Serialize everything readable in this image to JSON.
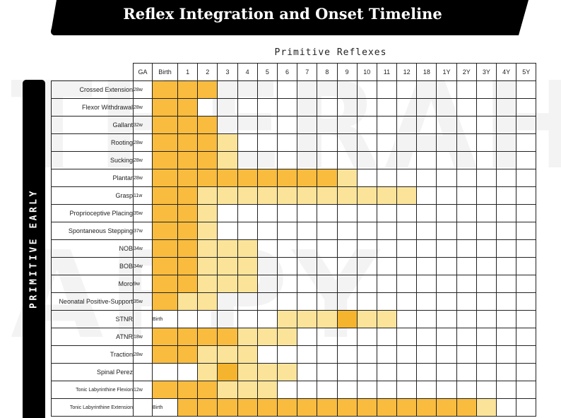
{
  "title": "Reflex Integration and Onset Timeline",
  "subtitle": "Primitive Reflexes",
  "side_label": "PRIMITIVE EARLY",
  "watermark": [
    "THERAH",
    "APPY"
  ],
  "colors": {
    "strong": "#f9bc3f",
    "light": "#fbe49a",
    "peak": "#f4b42e"
  },
  "columns": [
    "GA",
    "Birth",
    "1",
    "2",
    "3",
    "4",
    "5",
    "6",
    "7",
    "8",
    "9",
    "10",
    "11",
    "12",
    "18",
    "1Y",
    "2Y",
    "3Y",
    "4Y",
    "5Y"
  ],
  "rows": [
    {
      "name": "Crossed Extension",
      "ga": "28w",
      "cells": [
        1,
        1,
        1,
        0,
        0,
        0,
        0,
        0,
        0,
        0,
        0,
        0,
        0,
        0,
        0,
        0,
        0,
        0,
        0
      ]
    },
    {
      "name": "Flexor Withdrawal",
      "ga": "28w",
      "cells": [
        1,
        1,
        0,
        0,
        0,
        0,
        0,
        0,
        0,
        0,
        0,
        0,
        0,
        0,
        0,
        0,
        0,
        0,
        0
      ]
    },
    {
      "name": "Gallant",
      "ga": "32w",
      "cells": [
        1,
        1,
        1,
        0,
        0,
        0,
        0,
        0,
        0,
        0,
        0,
        0,
        0,
        0,
        0,
        0,
        0,
        0,
        0
      ]
    },
    {
      "name": "Rooting",
      "ga": "28w",
      "cells": [
        1,
        1,
        1,
        2,
        0,
        0,
        0,
        0,
        0,
        0,
        0,
        0,
        0,
        0,
        0,
        0,
        0,
        0,
        0
      ]
    },
    {
      "name": "Sucking",
      "ga": "28w",
      "cells": [
        1,
        1,
        1,
        2,
        0,
        0,
        0,
        0,
        0,
        0,
        0,
        0,
        0,
        0,
        0,
        0,
        0,
        0,
        0
      ]
    },
    {
      "name": "Plantar",
      "ga": "28w",
      "cells": [
        1,
        1,
        1,
        1,
        1,
        1,
        1,
        1,
        1,
        2,
        0,
        0,
        0,
        0,
        0,
        0,
        0,
        0,
        0
      ]
    },
    {
      "name": "Grasp",
      "ga": "11w",
      "cells": [
        1,
        1,
        2,
        2,
        2,
        2,
        2,
        2,
        2,
        2,
        2,
        2,
        2,
        0,
        0,
        0,
        0,
        0,
        0
      ]
    },
    {
      "name": "Proprioceptive Placing",
      "ga": "35w",
      "cells": [
        1,
        1,
        2,
        0,
        0,
        0,
        0,
        0,
        0,
        0,
        0,
        0,
        0,
        0,
        0,
        0,
        0,
        0,
        0
      ]
    },
    {
      "name": "Spontaneous Stepping",
      "ga": "37w",
      "cells": [
        1,
        1,
        2,
        0,
        0,
        0,
        0,
        0,
        0,
        0,
        0,
        0,
        0,
        0,
        0,
        0,
        0,
        0,
        0
      ]
    },
    {
      "name": "NOB",
      "ga": "34w",
      "cells": [
        1,
        1,
        2,
        2,
        2,
        0,
        0,
        0,
        0,
        0,
        0,
        0,
        0,
        0,
        0,
        0,
        0,
        0,
        0
      ]
    },
    {
      "name": "BOB",
      "ga": "34w",
      "cells": [
        1,
        1,
        2,
        2,
        2,
        0,
        0,
        0,
        0,
        0,
        0,
        0,
        0,
        0,
        0,
        0,
        0,
        0,
        0
      ]
    },
    {
      "name": "Moro",
      "ga": "9w",
      "cells": [
        1,
        1,
        2,
        2,
        2,
        0,
        0,
        0,
        0,
        0,
        0,
        0,
        0,
        0,
        0,
        0,
        0,
        0,
        0
      ]
    },
    {
      "name": "Neonatal Positive-Support",
      "ga": "35w",
      "cells": [
        1,
        2,
        2,
        0,
        0,
        0,
        0,
        0,
        0,
        0,
        0,
        0,
        0,
        0,
        0,
        0,
        0,
        0,
        0
      ]
    },
    {
      "name": "STNR",
      "ga": "",
      "cells": [
        "Birth",
        0,
        0,
        0,
        0,
        0,
        2,
        2,
        2,
        3,
        2,
        2,
        0,
        0,
        0,
        0,
        0,
        0,
        0
      ]
    },
    {
      "name": "ATNR",
      "ga": "18w",
      "cells": [
        1,
        1,
        1,
        1,
        2,
        2,
        2,
        0,
        0,
        0,
        0,
        0,
        0,
        0,
        0,
        0,
        0,
        0,
        0
      ]
    },
    {
      "name": "Traction",
      "ga": "28w",
      "cells": [
        1,
        1,
        2,
        2,
        2,
        0,
        0,
        0,
        0,
        0,
        0,
        0,
        0,
        0,
        0,
        0,
        0,
        0,
        0
      ]
    },
    {
      "name": "Spinal Perez",
      "ga": "",
      "cells": [
        0,
        0,
        2,
        3,
        2,
        2,
        2,
        0,
        0,
        0,
        0,
        0,
        0,
        0,
        0,
        0,
        0,
        0,
        0
      ]
    },
    {
      "name": "Tonic Labyrinthine Flexion",
      "ga": "12w",
      "cells": [
        1,
        1,
        1,
        2,
        2,
        2,
        0,
        0,
        0,
        0,
        0,
        0,
        0,
        0,
        0,
        0,
        0,
        0,
        0
      ],
      "small": true
    },
    {
      "name": "Tonic Labyrinthine Extension",
      "ga": "",
      "cells": [
        "Birth",
        1,
        1,
        1,
        1,
        1,
        1,
        1,
        1,
        1,
        1,
        1,
        1,
        1,
        1,
        1,
        2,
        0,
        0
      ],
      "small": true
    }
  ]
}
